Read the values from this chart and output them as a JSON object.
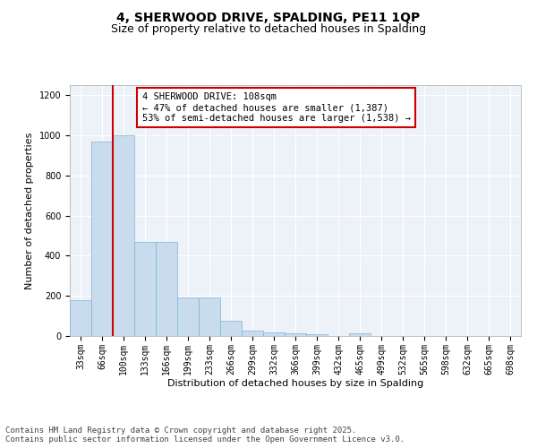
{
  "title1": "4, SHERWOOD DRIVE, SPALDING, PE11 1QP",
  "title2": "Size of property relative to detached houses in Spalding",
  "xlabel": "Distribution of detached houses by size in Spalding",
  "ylabel": "Number of detached properties",
  "categories": [
    "33sqm",
    "66sqm",
    "100sqm",
    "133sqm",
    "166sqm",
    "199sqm",
    "233sqm",
    "266sqm",
    "299sqm",
    "332sqm",
    "366sqm",
    "399sqm",
    "432sqm",
    "465sqm",
    "499sqm",
    "532sqm",
    "565sqm",
    "598sqm",
    "632sqm",
    "665sqm",
    "698sqm"
  ],
  "values": [
    180,
    970,
    1000,
    470,
    470,
    190,
    190,
    75,
    25,
    20,
    15,
    10,
    0,
    15,
    0,
    0,
    0,
    0,
    0,
    0,
    0
  ],
  "bar_color": "#c8dced",
  "bar_edge_color": "#7fb3d3",
  "vline_color": "#cc0000",
  "annotation_text": "4 SHERWOOD DRIVE: 108sqm\n← 47% of detached houses are smaller (1,387)\n53% of semi-detached houses are larger (1,538) →",
  "annotation_box_color": "#ffffff",
  "annotation_box_edge": "#cc0000",
  "ylim": [
    0,
    1250
  ],
  "yticks": [
    0,
    200,
    400,
    600,
    800,
    1000,
    1200
  ],
  "background_color": "#edf2f9",
  "grid_color": "#ffffff",
  "footer_text": "Contains HM Land Registry data © Crown copyright and database right 2025.\nContains public sector information licensed under the Open Government Licence v3.0.",
  "title1_fontsize": 10,
  "title2_fontsize": 9,
  "xlabel_fontsize": 8,
  "ylabel_fontsize": 8,
  "tick_fontsize": 7,
  "annotation_fontsize": 7.5,
  "footer_fontsize": 6.5
}
